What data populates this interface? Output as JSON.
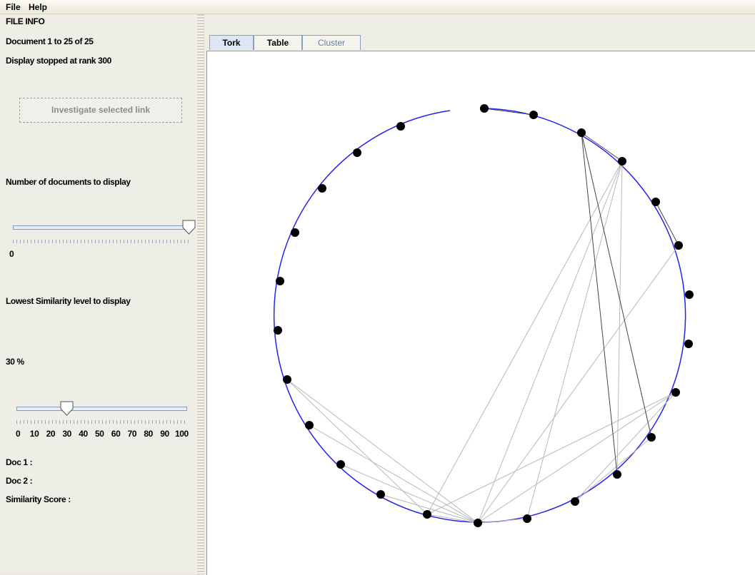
{
  "menu": [
    "File",
    "Help"
  ],
  "file_info": {
    "title": "FILE INFO",
    "documents": "Document 1 to 25 of 25",
    "display_stopped": "Display stopped at rank 300"
  },
  "button": "Investigate selected link",
  "documents_slider": {
    "label": "Number of documents to display",
    "tick_label": "0"
  },
  "similarity_slider": {
    "label": "Lowest Similarity level to display",
    "value_text": "30 %",
    "tick_labels": [
      "0",
      "10",
      "20",
      "30",
      "40",
      "50",
      "60",
      "70",
      "80",
      "90",
      "100"
    ]
  },
  "details": {
    "doc1": "Doc 1 :",
    "doc2": "Doc 2 :",
    "score": "Similarity Score :"
  },
  "tabs": [
    "Tork",
    "Table",
    "Cluster"
  ]
}
